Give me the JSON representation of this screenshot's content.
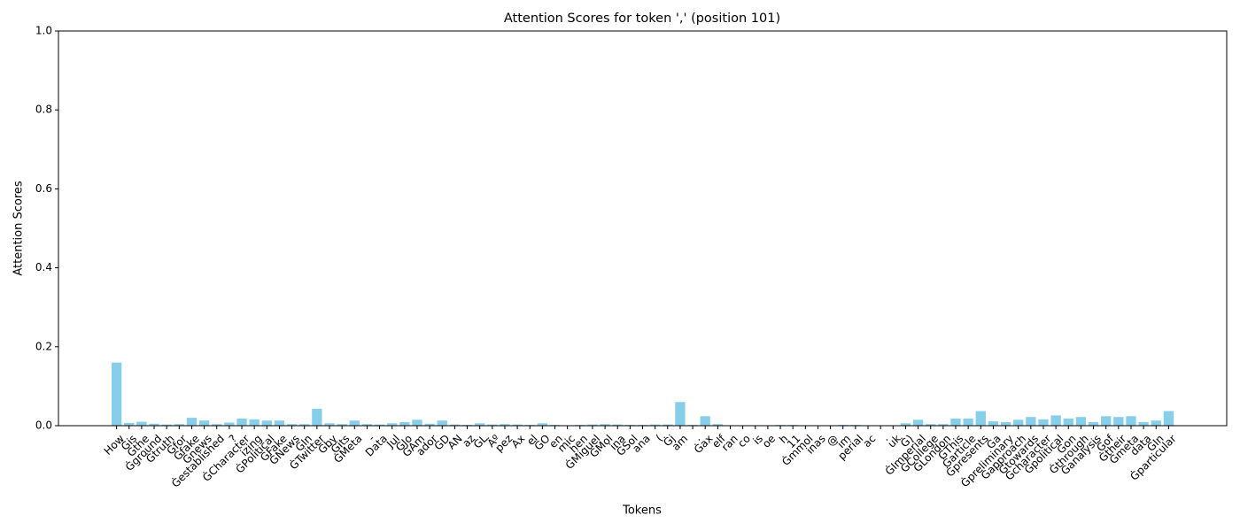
{
  "chart_data": {
    "type": "bar",
    "title": "Attention Scores for token ',' (position 101)",
    "x_label": "Tokens",
    "y_label": "Attention Scores",
    "color": "#87ceeb",
    "ylim": [
      0,
      1
    ],
    "yticks": [
      {
        "value": 0,
        "label": "0.0"
      },
      0.2,
      0.4,
      0.6,
      0.8,
      {
        "value": 1,
        "label": "1.0"
      }
    ],
    "categories": [
      "How",
      "Ġis",
      "Ġthe",
      "Ġground",
      "Ġtruth",
      "Ġfor",
      "Ġfake",
      "Ġnews",
      "Ġestablished",
      "?",
      "ĠCharacter",
      "izing",
      "ĠPolitical",
      "ĠFake",
      "ĠNews",
      "ĠIn",
      "ĠTwitter",
      "Ġby",
      "Ġits",
      "ĠMeta",
      "-",
      "Data",
      "Jul",
      "ĠJo",
      "ĠAm",
      "ador",
      "ĠD",
      "AN",
      "az",
      "ĠL",
      "Ãº",
      "pez",
      "Ax",
      "el",
      "ĠO",
      "en",
      "mic",
      "hen",
      "ĠMiguel",
      "ĠMol",
      "ina",
      "ĠSol",
      "ana",
      "(",
      "Ġj",
      "am",
      ".",
      "Ġax",
      "elf",
      "ran",
      "co",
      "is",
      "oe",
      "h",
      "11",
      "Ġmmol",
      "inas",
      "@",
      "im",
      "perial",
      "ac",
      ".",
      "uk",
      "Ġ)",
      "ĠImperial",
      "ĠCollege",
      "ĠLondon",
      "ĠThis",
      "Ġarticle",
      "Ġpresents",
      "Ġa",
      "Ġpreliminary",
      "Ġapproach",
      "Ġtowards",
      "Ġcharacter",
      "Ġpolitical",
      "Ġon",
      "Ġthrough",
      "Ġanalysis",
      "Ġof",
      "Ġtheir",
      "Ġmeta",
      "data",
      "ĠIn",
      "Ġparticular"
    ],
    "values": [
      0.16,
      0.007,
      0.01,
      0.005,
      0.003,
      0.004,
      0.02,
      0.013,
      0.004,
      0.008,
      0.018,
      0.016,
      0.013,
      0.013,
      0.004,
      0.004,
      0.043,
      0.006,
      0.004,
      0.013,
      0.004,
      0.003,
      0.006,
      0.009,
      0.015,
      0.005,
      0.013,
      0.003,
      0.002,
      0.006,
      0.003,
      0.004,
      0.003,
      0.002,
      0.006,
      0.002,
      0.001,
      0.002,
      0.003,
      0.004,
      0.003,
      0.002,
      0.002,
      0.003,
      0.003,
      0.06,
      0.002,
      0.024,
      0.004,
      0.001,
      0.001,
      0.001,
      0.001,
      0.002,
      0.002,
      0.001,
      0.001,
      0.001,
      0.002,
      0.002,
      0.001,
      0.001,
      0.001,
      0.006,
      0.015,
      0.004,
      0.004,
      0.018,
      0.018,
      0.037,
      0.011,
      0.009,
      0.015,
      0.022,
      0.016,
      0.026,
      0.018,
      0.022,
      0.009,
      0.024,
      0.022,
      0.024,
      0.009,
      0.013,
      0.037
    ]
  }
}
